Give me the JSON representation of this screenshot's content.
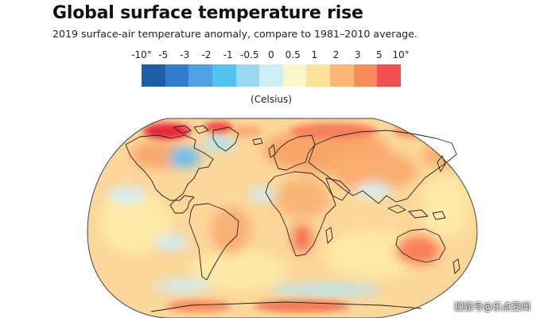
{
  "header": {
    "title": "Global surface temperature rise",
    "subtitle": "2019 surface-air temperature anomaly, compare to 1981–2010 average."
  },
  "legend": {
    "ticks": [
      "-10°",
      "-5",
      "-3",
      "-2",
      "-1",
      "-0.5",
      "0",
      "0.5",
      "1",
      "2",
      "3",
      "5",
      "10°"
    ],
    "colors": [
      "#1f5fa8",
      "#2f7fcd",
      "#4fa3e4",
      "#53c4f0",
      "#99d9f0",
      "#cceef6",
      "#fbf6c8",
      "#fde39a",
      "#fcb773",
      "#f88c5c",
      "#f25050",
      "#e81c35",
      "#c3071e"
    ],
    "unit": "(Celsius)"
  },
  "map": {
    "projection": "Robinson",
    "land_outline_color": "#222222",
    "base_anomaly_color": "#fcd79a",
    "hotspots": [
      "arctic",
      "europe",
      "siberia",
      "australia",
      "alaska"
    ],
    "coldspots": [
      "canada-greenland",
      "southern-ocean"
    ]
  },
  "watermark": "搜狐号@乐点要闻"
}
